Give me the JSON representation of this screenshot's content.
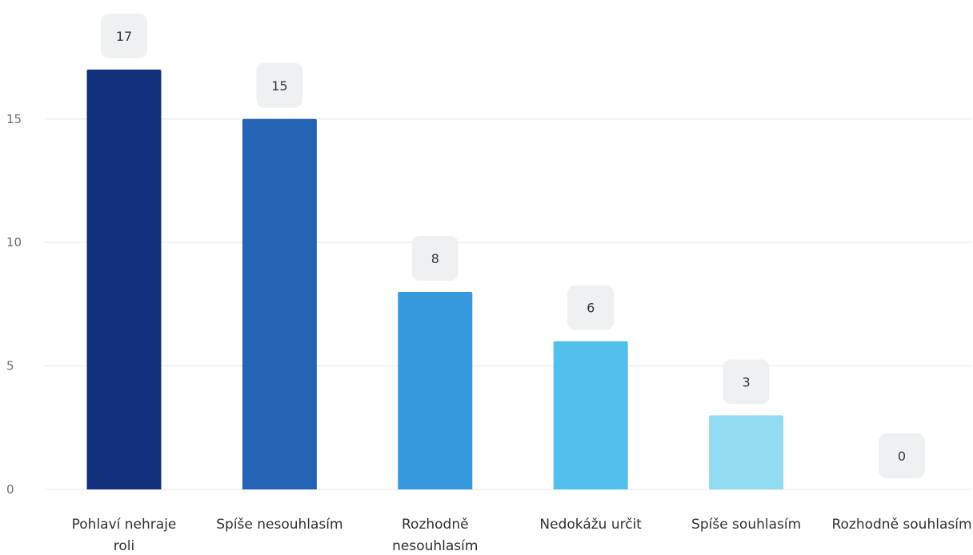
{
  "chart_data": {
    "type": "bar",
    "categories": [
      "Pohlaví nehraje roli",
      "Spíše nesouhlasím",
      "Rozhodně nesouhlasím",
      "Nedokážu určit",
      "Spíše souhlasím",
      "Rozhodně souhlasím"
    ],
    "values": [
      17,
      15,
      8,
      6,
      3,
      0
    ],
    "title": "",
    "xlabel": "",
    "ylabel": "",
    "ylim": [
      0,
      17
    ],
    "yticks": [
      0,
      5,
      10,
      15
    ],
    "grid": true,
    "legend": "none",
    "data_labels": true
  },
  "colors": {
    "bars": [
      "#12307c",
      "#2563b4",
      "#3698dd",
      "#52c0ec",
      "#91dcf2",
      "#c9eefa"
    ],
    "gridline": "#e4e6e9",
    "axis_text": "#6b6f76",
    "category_text": "#2d3035",
    "label_box": "#eff0f1",
    "label_text": "#33363b"
  }
}
